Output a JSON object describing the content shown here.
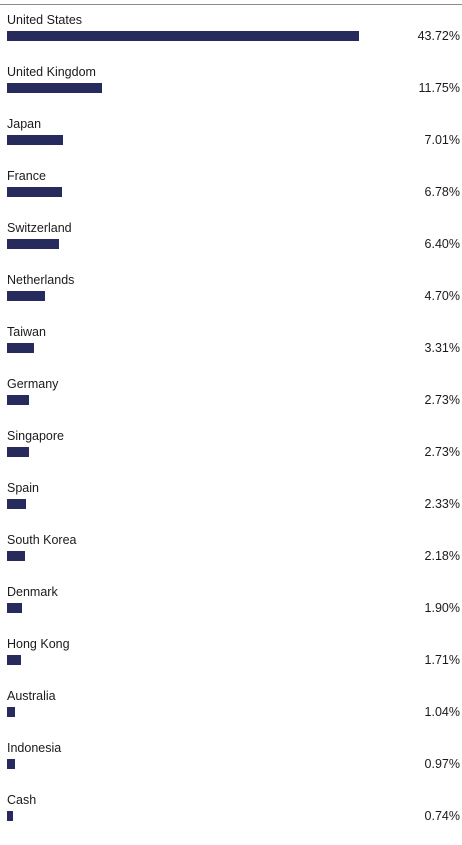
{
  "chart_data": {
    "type": "bar",
    "orientation": "horizontal",
    "categories": [
      "United States",
      "United Kingdom",
      "Japan",
      "France",
      "Switzerland",
      "Netherlands",
      "Taiwan",
      "Germany",
      "Singapore",
      "Spain",
      "South Korea",
      "Denmark",
      "Hong Kong",
      "Australia",
      "Indonesia",
      "Cash"
    ],
    "values": [
      43.72,
      11.75,
      7.01,
      6.78,
      6.4,
      4.7,
      3.31,
      2.73,
      2.73,
      2.33,
      2.18,
      1.9,
      1.71,
      1.04,
      0.97,
      0.74
    ],
    "value_labels": [
      "43.72%",
      "11.75%",
      "7.01%",
      "6.78%",
      "6.40%",
      "4.70%",
      "3.31%",
      "2.73%",
      "2.73%",
      "2.33%",
      "2.18%",
      "1.90%",
      "1.71%",
      "1.04%",
      "0.97%",
      "0.74%"
    ],
    "unit": "%",
    "bar_color": "#262a5c",
    "grid": false,
    "legend": "none"
  }
}
